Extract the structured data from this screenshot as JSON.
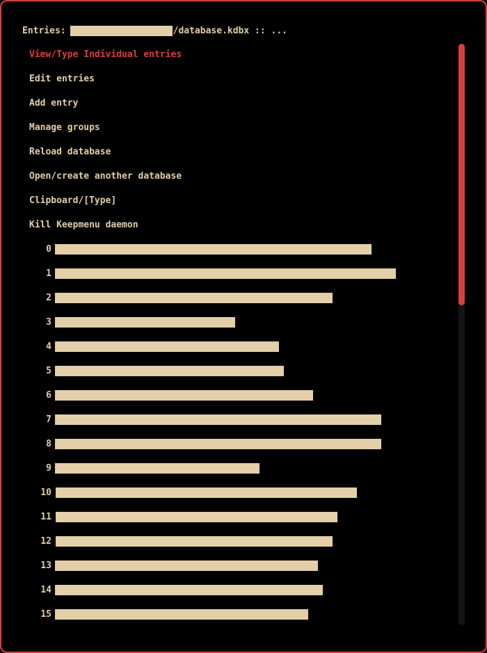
{
  "prompt": {
    "label": "Entries:",
    "path_suffix": "/database.kdbx",
    "separator": "::",
    "ellipsis": "..."
  },
  "menu": {
    "items": [
      {
        "label": "View/Type Individual entries",
        "selected": true
      },
      {
        "label": "Edit entries"
      },
      {
        "label": "Add entry"
      },
      {
        "label": "Manage groups"
      },
      {
        "label": "Reload database"
      },
      {
        "label": "Open/create another database"
      },
      {
        "label": "Clipboard/[Type]"
      },
      {
        "label": "Kill Keepmenu daemon"
      }
    ]
  },
  "entries": [
    {
      "number": "0",
      "dash": "-"
    },
    {
      "number": "1",
      "dash": "-"
    },
    {
      "number": "2",
      "dash": "-"
    },
    {
      "number": "3",
      "dash": "-"
    },
    {
      "number": "4",
      "dash": "-"
    },
    {
      "number": "5",
      "dash": "-"
    },
    {
      "number": "6",
      "dash": "-"
    },
    {
      "number": "7",
      "dash": "-"
    },
    {
      "number": "8",
      "dash": "-"
    },
    {
      "number": "9",
      "dash": "-"
    },
    {
      "number": "10",
      "dash": "-"
    },
    {
      "number": "11",
      "dash": "-"
    },
    {
      "number": "12",
      "dash": "-"
    },
    {
      "number": "13",
      "dash": "-"
    },
    {
      "number": "14",
      "dash": "-"
    },
    {
      "number": "15",
      "dash": "-"
    }
  ],
  "colors": {
    "foreground": "#e3cfa8",
    "accent": "#d8403f",
    "background": "#000000",
    "scroll_track": "#141417"
  },
  "scrollbar": {
    "visible_fraction": 0.45
  }
}
